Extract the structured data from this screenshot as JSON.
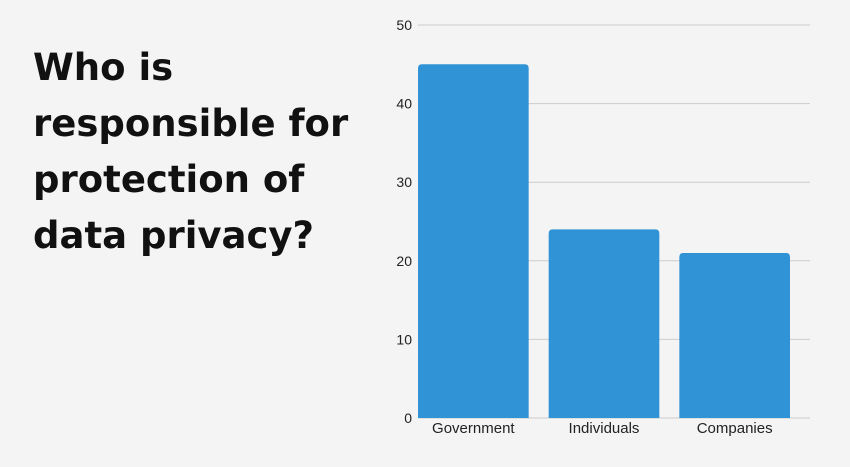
{
  "title_lines": [
    "Who is",
    "responsible for",
    "protection of",
    "data privacy?"
  ],
  "chart_data": {
    "type": "bar",
    "title": "Who is responsible for protection of data privacy?",
    "categories": [
      "Government",
      "Individuals",
      "Companies"
    ],
    "values": [
      45,
      24,
      21
    ],
    "ylim": [
      0,
      50
    ],
    "yticks": [
      0,
      10,
      20,
      30,
      40,
      50
    ],
    "grid": true,
    "bar_color": "#2f93d6",
    "grid_color": "#cccccc"
  }
}
